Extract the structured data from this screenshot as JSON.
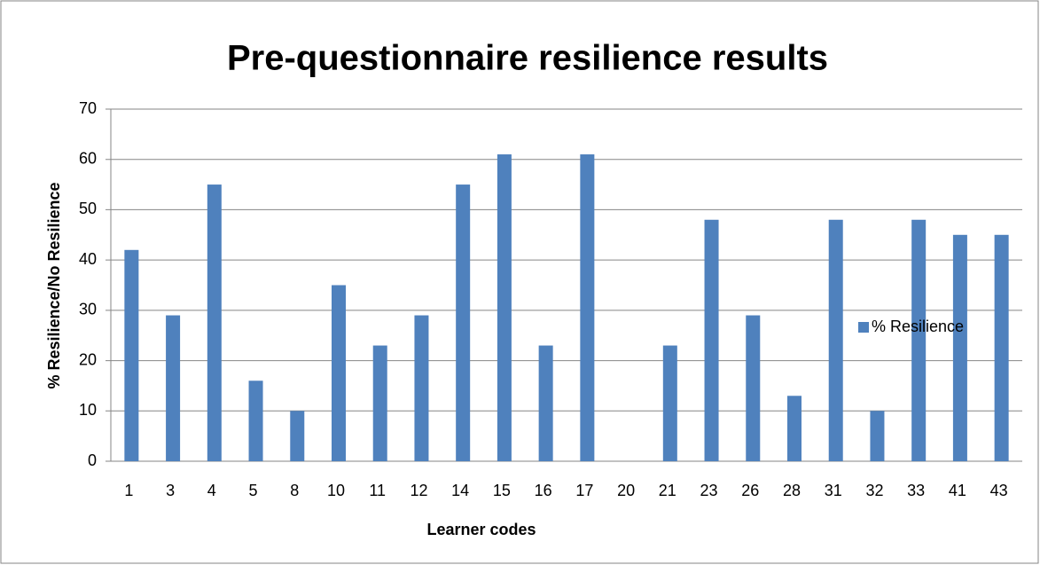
{
  "chart_data": {
    "type": "bar",
    "title": "Pre-questionnaire resilience results",
    "x_label": "Learner codes",
    "y_label": "% Resilience/No Resilience",
    "categories": [
      "1",
      "3",
      "4",
      "5",
      "8",
      "10",
      "11",
      "12",
      "14",
      "15",
      "16",
      "17",
      "20",
      "21",
      "23",
      "26",
      "28",
      "31",
      "32",
      "33",
      "41",
      "43"
    ],
    "series": [
      {
        "name": "% Resilience",
        "color": "#4f81bd",
        "values": [
          42,
          29,
          55,
          16,
          10,
          35,
          23,
          29,
          55,
          61,
          23,
          61,
          0,
          23,
          48,
          29,
          13,
          48,
          10,
          48,
          45,
          45
        ]
      }
    ],
    "ylim": [
      0,
      70
    ],
    "yticks": [
      0,
      10,
      20,
      30,
      40,
      50,
      60,
      70
    ],
    "grid": true,
    "legend": "right"
  }
}
